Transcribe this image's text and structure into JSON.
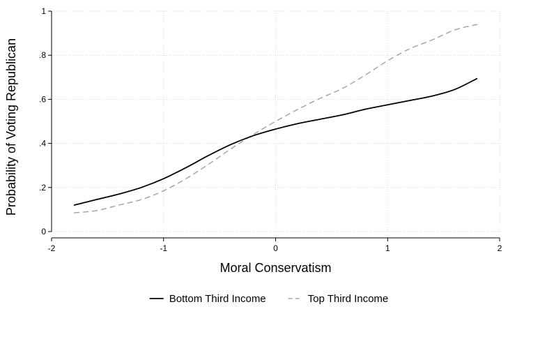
{
  "chart_data": {
    "type": "line",
    "title": "",
    "xlabel": "Moral Conservatism",
    "ylabel": "Probability of Voting Republican",
    "xlim": [
      -2,
      2
    ],
    "ylim": [
      0,
      1
    ],
    "xticks": [
      {
        "value": -2,
        "label": "-2"
      },
      {
        "value": -1,
        "label": "-1"
      },
      {
        "value": 0,
        "label": "0"
      },
      {
        "value": 1,
        "label": "1"
      },
      {
        "value": 2,
        "label": "2"
      }
    ],
    "yticks": [
      {
        "value": 0,
        "label": "0"
      },
      {
        "value": 0.2,
        "label": ".2"
      },
      {
        "value": 0.4,
        "label": ".4"
      },
      {
        "value": 0.6,
        "label": ".6"
      },
      {
        "value": 0.8,
        "label": ".8"
      },
      {
        "value": 1,
        "label": "1"
      }
    ],
    "grid": true,
    "legend_position": "bottom",
    "series": [
      {
        "name": "Bottom Third Income",
        "color": "#000000",
        "dash": "solid",
        "x": [
          -1.8,
          -1.6,
          -1.4,
          -1.2,
          -1.0,
          -0.8,
          -0.6,
          -0.4,
          -0.2,
          0.0,
          0.2,
          0.4,
          0.6,
          0.8,
          1.0,
          1.2,
          1.4,
          1.6,
          1.8
        ],
        "y": [
          0.12,
          0.145,
          0.17,
          0.2,
          0.24,
          0.29,
          0.345,
          0.395,
          0.435,
          0.465,
          0.49,
          0.51,
          0.53,
          0.555,
          0.575,
          0.595,
          0.615,
          0.645,
          0.695
        ]
      },
      {
        "name": "Top Third Income",
        "color": "#a6a6a6",
        "dash": "dashed",
        "x": [
          -1.8,
          -1.6,
          -1.4,
          -1.2,
          -1.0,
          -0.8,
          -0.6,
          -0.4,
          -0.2,
          0.0,
          0.2,
          0.4,
          0.6,
          0.8,
          1.0,
          1.2,
          1.4,
          1.6,
          1.8
        ],
        "y": [
          0.085,
          0.095,
          0.12,
          0.145,
          0.185,
          0.24,
          0.305,
          0.375,
          0.44,
          0.5,
          0.555,
          0.605,
          0.65,
          0.71,
          0.775,
          0.83,
          0.87,
          0.915,
          0.94
        ]
      }
    ]
  }
}
